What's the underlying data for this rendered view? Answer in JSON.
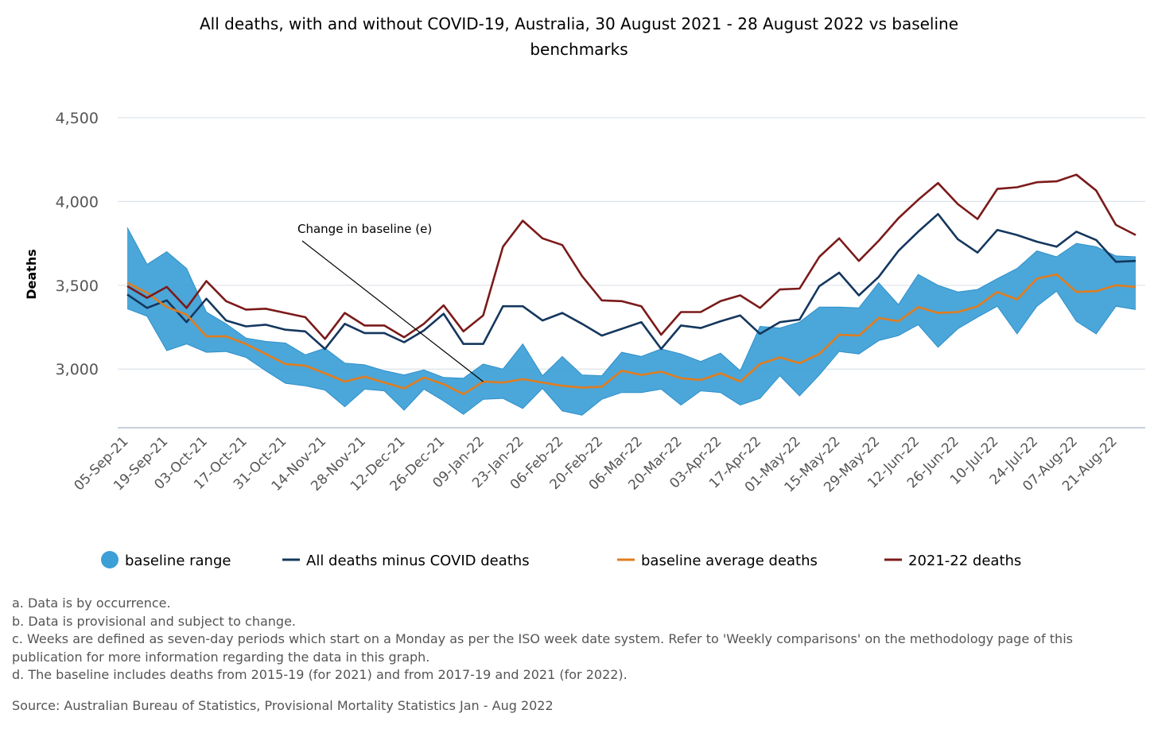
{
  "chart_data": {
    "type": "line",
    "title_line1": "All deaths, with and without COVID-19, Australia, 30 August 2021 - 28 August 2022 vs baseline",
    "title_line2": "benchmarks",
    "ylabel": "Deaths",
    "xlabel": "",
    "ylim": [
      2650,
      4500
    ],
    "yticks": [
      3000,
      3500,
      4000,
      4500
    ],
    "ytick_labels": [
      "3,000",
      "3,500",
      "4,000",
      "4,500"
    ],
    "grid": "horizontal",
    "x": [
      "05-Sep-21",
      "12-Sep-21",
      "19-Sep-21",
      "26-Sep-21",
      "03-Oct-21",
      "10-Oct-21",
      "17-Oct-21",
      "24-Oct-21",
      "31-Oct-21",
      "07-Nov-21",
      "14-Nov-21",
      "21-Nov-21",
      "28-Nov-21",
      "05-Dec-21",
      "12-Dec-21",
      "19-Dec-21",
      "26-Dec-21",
      "02-Jan-22",
      "09-Jan-22",
      "16-Jan-22",
      "23-Jan-22",
      "30-Jan-22",
      "06-Feb-22",
      "13-Feb-22",
      "20-Feb-22",
      "27-Feb-22",
      "06-Mar-22",
      "13-Mar-22",
      "20-Mar-22",
      "27-Mar-22",
      "03-Apr-22",
      "10-Apr-22",
      "17-Apr-22",
      "24-Apr-22",
      "01-May-22",
      "08-May-22",
      "15-May-22",
      "22-May-22",
      "29-May-22",
      "05-Jun-22",
      "12-Jun-22",
      "19-Jun-22",
      "26-Jun-22",
      "03-Jul-22",
      "10-Jul-22",
      "17-Jul-22",
      "24-Jul-22",
      "31-Jul-22",
      "07-Aug-22",
      "14-Aug-22",
      "21-Aug-22",
      "28-Aug-22"
    ],
    "x_tick_labels": [
      "05-Sep-21",
      "19-Sep-21",
      "03-Oct-21",
      "17-Oct-21",
      "31-Oct-21",
      "14-Nov-21",
      "28-Nov-21",
      "12-Dec-21",
      "26-Dec-21",
      "09-Jan-22",
      "23-Jan-22",
      "06-Feb-22",
      "20-Feb-22",
      "06-Mar-22",
      "20-Mar-22",
      "03-Apr-22",
      "17-Apr-22",
      "01-May-22",
      "15-May-22",
      "29-May-22",
      "12-Jun-22",
      "26-Jun-22",
      "10-Jul-22",
      "24-Jul-22",
      "07-Aug-22",
      "21-Aug-22"
    ],
    "series": [
      {
        "name": "baseline range",
        "kind": "range",
        "color": "#3c9fd6",
        "upper": [
          3845,
          3625,
          3700,
          3600,
          3340,
          3270,
          3185,
          3165,
          3155,
          3085,
          3125,
          3035,
          3025,
          2990,
          2965,
          2995,
          2950,
          2945,
          3030,
          3000,
          3150,
          2960,
          3075,
          2965,
          2960,
          3100,
          3075,
          3120,
          3090,
          3045,
          3095,
          2990,
          3255,
          3245,
          3280,
          3370,
          3370,
          3365,
          3515,
          3385,
          3565,
          3500,
          3460,
          3475,
          3540,
          3600,
          3705,
          3670,
          3750,
          3730,
          3675,
          3670
        ],
        "lower": [
          3360,
          3315,
          3110,
          3150,
          3100,
          3105,
          3070,
          2990,
          2915,
          2900,
          2875,
          2775,
          2880,
          2870,
          2755,
          2880,
          2810,
          2730,
          2820,
          2825,
          2765,
          2885,
          2750,
          2725,
          2820,
          2860,
          2860,
          2880,
          2785,
          2870,
          2860,
          2785,
          2825,
          2960,
          2840,
          2965,
          3105,
          3090,
          3170,
          3200,
          3265,
          3130,
          3240,
          3310,
          3375,
          3210,
          3375,
          3465,
          3285,
          3210,
          3375,
          3355
        ]
      },
      {
        "name": "All deaths minus COVID deaths",
        "color": "#14375e",
        "values": [
          3445,
          3365,
          3410,
          3280,
          3420,
          3290,
          3255,
          3265,
          3235,
          3225,
          3120,
          3270,
          3215,
          3215,
          3160,
          3230,
          3330,
          3150,
          3150,
          3375,
          3375,
          3290,
          3335,
          3270,
          3200,
          3240,
          3280,
          3120,
          3260,
          3245,
          3285,
          3320,
          3210,
          3280,
          3295,
          3495,
          3575,
          3440,
          3550,
          3705,
          3820,
          3925,
          3775,
          3695,
          3830,
          3800,
          3760,
          3730,
          3820,
          3770,
          3640,
          3645
        ]
      },
      {
        "name": "baseline average deaths",
        "color": "#e07c1f",
        "values": [
          3515,
          3455,
          3370,
          3325,
          3195,
          3195,
          3150,
          3090,
          3030,
          3020,
          2975,
          2925,
          2955,
          2920,
          2885,
          2950,
          2910,
          2850,
          2925,
          2920,
          2940,
          2920,
          2900,
          2890,
          2895,
          2990,
          2965,
          2985,
          2945,
          2935,
          2975,
          2925,
          3030,
          3070,
          3035,
          3090,
          3205,
          3200,
          3305,
          3285,
          3370,
          3335,
          3340,
          3375,
          3460,
          3415,
          3540,
          3565,
          3460,
          3465,
          3500,
          3490
        ]
      },
      {
        "name": "2021-22 deaths",
        "color": "#7b1a1a",
        "values": [
          3495,
          3425,
          3490,
          3365,
          3525,
          3405,
          3355,
          3360,
          3335,
          3310,
          3180,
          3335,
          3260,
          3260,
          3190,
          3270,
          3380,
          3225,
          3320,
          3730,
          3885,
          3780,
          3740,
          3555,
          3410,
          3405,
          3375,
          3205,
          3340,
          3340,
          3405,
          3440,
          3365,
          3475,
          3480,
          3670,
          3780,
          3645,
          3765,
          3900,
          4010,
          4110,
          3985,
          3895,
          4075,
          4085,
          4115,
          4120,
          4160,
          4065,
          3860,
          3800
        ]
      }
    ],
    "annotation": {
      "text": "Change in baseline (e)",
      "arrow_to_x": "09-Jan-22",
      "arrow_to_y": 2925
    },
    "legend": "bottom"
  },
  "notes": [
    "a. Data is by occurrence.",
    "b. Data is provisional and subject to change.",
    "c. Weeks are defined as seven-day periods which start on a Monday as per the ISO week date system. Refer to 'Weekly comparisons' on the methodology page of this",
    "publication for more information regarding the data in this graph.",
    "d. The baseline includes deaths from 2015-19 (for 2021) and from 2017-19 and 2021 (for 2022)."
  ],
  "source": "Source: Australian Bureau of Statistics, Provisional Mortality Statistics Jan - Aug 2022"
}
